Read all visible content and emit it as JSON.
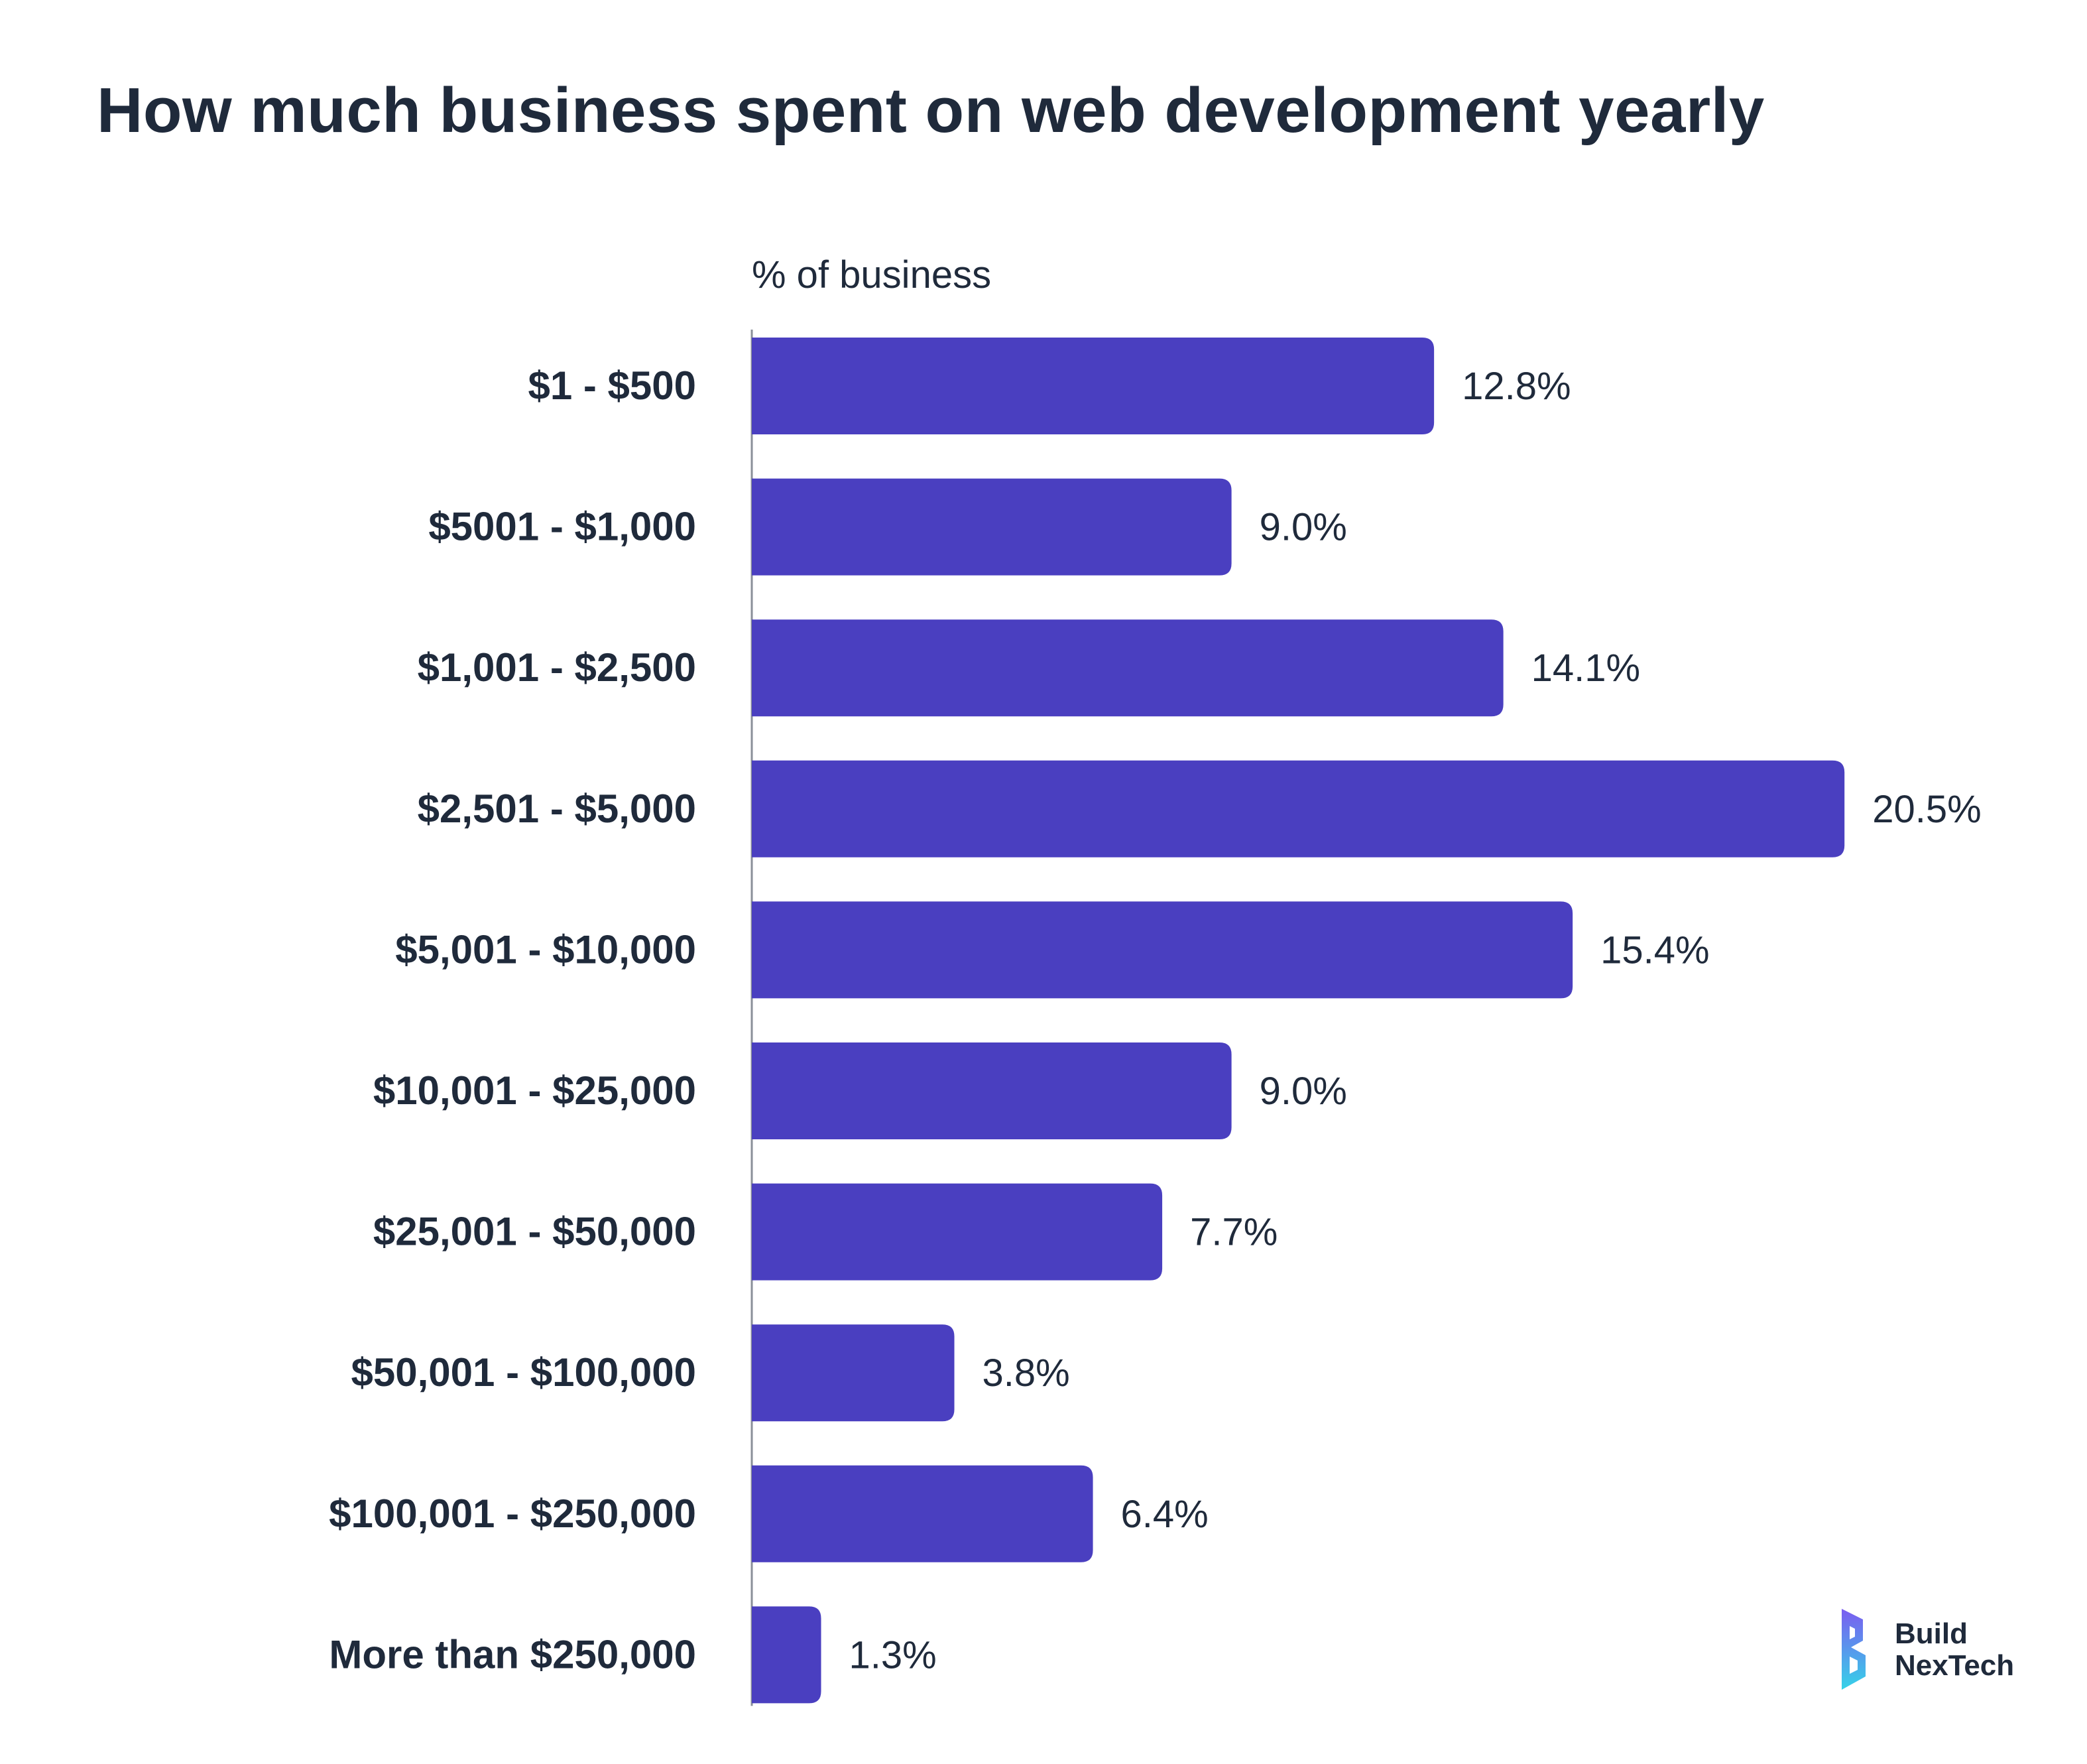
{
  "title": "How much business spent on web development yearly",
  "brand": {
    "line1": "Build",
    "line2": "NexTech",
    "colors": [
      "#7b5cf0",
      "#35d3e8"
    ]
  },
  "chart_data": {
    "type": "bar",
    "orientation": "horizontal",
    "title": "How much business spent on web development yearly",
    "xlabel": "% of business",
    "ylabel": "",
    "xlim": [
      0,
      22
    ],
    "grid": false,
    "bar_color": "#4a3fc0",
    "categories": [
      "$1 - $500",
      "$5001 - $1,000",
      "$1,001 - $2,500",
      "$2,501 - $5,000",
      "$5,001 - $10,000",
      "$10,001 - $25,000",
      "$25,001 - $50,000",
      "$50,001 - $100,000",
      "$100,001 - $250,000",
      "More than $250,000"
    ],
    "values": [
      12.8,
      9.0,
      14.1,
      20.5,
      15.4,
      9.0,
      7.7,
      3.8,
      6.4,
      1.3
    ],
    "value_labels": [
      "12.8%",
      "9.0%",
      "14.1%",
      "20.5%",
      "15.4%",
      "9.0%",
      "7.7%",
      "3.8%",
      "6.4%",
      "1.3%"
    ]
  }
}
